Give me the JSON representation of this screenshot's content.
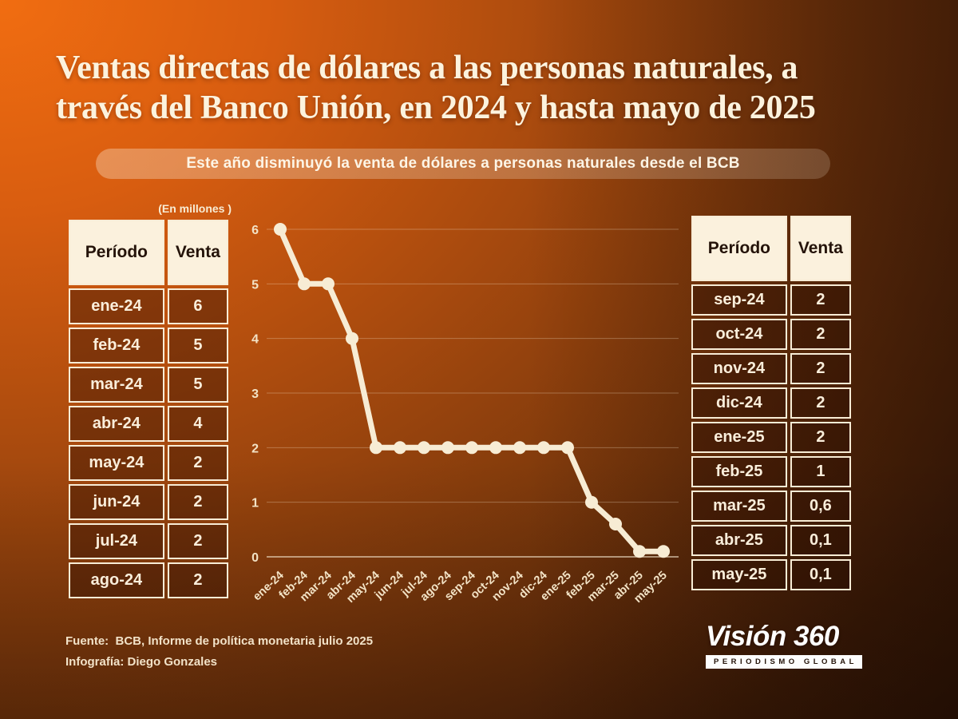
{
  "title_lines": [
    "Ventas directas de dólares a las personas naturales, a",
    "través del Banco Unión, en 2024 y hasta mayo de 2025"
  ],
  "subtitle": "Este año disminuyó la venta de dólares a personas naturales desde el BCB",
  "unit_label": "(En millones )",
  "tables": {
    "left": {
      "headers": [
        "Período",
        "Venta"
      ],
      "rows": [
        [
          "ene-24",
          "6"
        ],
        [
          "feb-24",
          "5"
        ],
        [
          "mar-24",
          "5"
        ],
        [
          "abr-24",
          "4"
        ],
        [
          "may-24",
          "2"
        ],
        [
          "jun-24",
          "2"
        ],
        [
          "jul-24",
          "2"
        ],
        [
          "ago-24",
          "2"
        ]
      ]
    },
    "right": {
      "headers": [
        "Período",
        "Venta"
      ],
      "rows": [
        [
          "sep-24",
          "2"
        ],
        [
          "oct-24",
          "2"
        ],
        [
          "nov-24",
          "2"
        ],
        [
          "dic-24",
          "2"
        ],
        [
          "ene-25",
          "2"
        ],
        [
          "feb-25",
          "1"
        ],
        [
          "mar-25",
          "0,6"
        ],
        [
          "abr-25",
          "0,1"
        ],
        [
          "may-25",
          "0,1"
        ]
      ]
    }
  },
  "chart_data": {
    "type": "line",
    "categories": [
      "ene-24",
      "feb-24",
      "mar-24",
      "abr-24",
      "may-24",
      "jun-24",
      "jul-24",
      "ago-24",
      "sep-24",
      "oct-24",
      "nov-24",
      "dic-24",
      "ene-25",
      "feb-25",
      "mar-25",
      "abr-25",
      "may-25"
    ],
    "values": [
      6,
      5,
      5,
      4,
      2,
      2,
      2,
      2,
      2,
      2,
      2,
      2,
      2,
      1,
      0.6,
      0.1,
      0.1
    ],
    "title": "",
    "xlabel": "",
    "ylabel": "",
    "unit": "En millones",
    "ylim": [
      0,
      6
    ],
    "yticks": [
      0,
      1,
      2,
      3,
      4,
      5,
      6
    ],
    "grid": true,
    "legend": "none",
    "marker": "circle",
    "line_color": "#f7ecd4",
    "tick_color": "#f3e3c6",
    "grid_color": "#f7e9d2"
  },
  "footer": {
    "source": "Fuente:  BCB, Informe de política monetaria julio 2025",
    "credit": "Infografía: Diego Gonzales"
  },
  "logo": {
    "name": "Visión 360",
    "tagline": "PERIODISMO GLOBAL"
  },
  "colors": {
    "background_orange": "#f16d11",
    "background_dark": "#2a1305",
    "cream": "#f8ecd4",
    "table_header_bg": "#fbf1dd",
    "table_header_text": "#241309",
    "table_cell_text": "#faeedb",
    "pill_text": "#fdf5e6"
  }
}
